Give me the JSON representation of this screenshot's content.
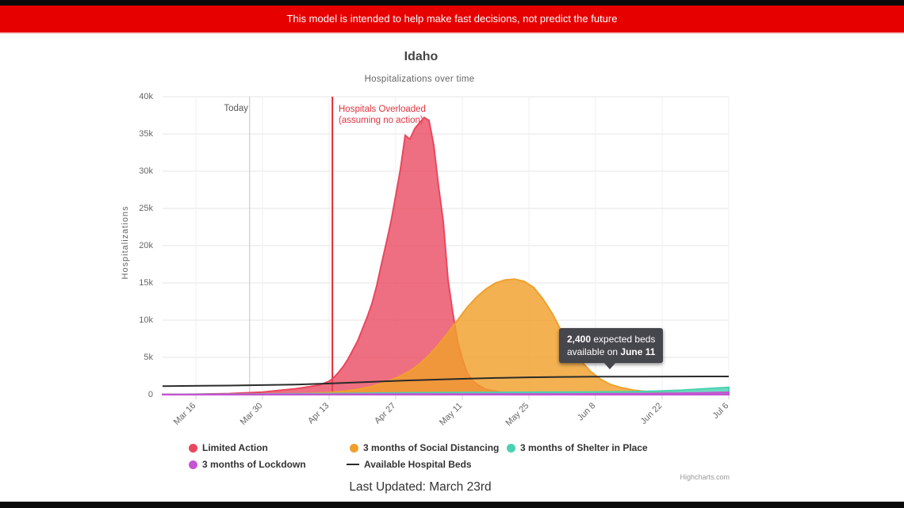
{
  "banner": {
    "text": "This model is intended to help make fast decisions, not predict the future"
  },
  "header": {
    "title": "Idaho",
    "subtitle": "Hospitalizations over time"
  },
  "axes": {
    "y_title": "Hospitalizations",
    "y_tick_labels": [
      "0",
      "5k",
      "10k",
      "15k",
      "20k",
      "25k",
      "30k",
      "35k",
      "40k"
    ],
    "x_tick_labels": [
      "Mar 16",
      "Mar 30",
      "Apr 13",
      "Apr 27",
      "May 11",
      "May 25",
      "Jun 8",
      "Jun 22",
      "Jul 6"
    ]
  },
  "annotations": {
    "today_label": "Today",
    "overload_line1": "Hospitals Overloaded",
    "overload_line2": "(assuming no action)"
  },
  "tooltip": {
    "value": "2,400",
    "after_value": " expected beds",
    "line2_prefix": "available on ",
    "date": "June 11"
  },
  "legend": {
    "items": [
      {
        "label": "Limited Action",
        "color": "#e9475e",
        "marker": "circle"
      },
      {
        "label": "3 months of Social Distancing",
        "color": "#f0a02c",
        "marker": "circle"
      },
      {
        "label": "3 months of Shelter in Place",
        "color": "#49d1b0",
        "marker": "circle"
      },
      {
        "label": "3 months of Lockdown",
        "color": "#c554d4",
        "marker": "circle"
      },
      {
        "label": "Available Hospital Beds",
        "color": "#2b2b2b",
        "marker": "line"
      }
    ]
  },
  "footer": {
    "last_updated": "Last Updated: March 23rd",
    "credits": "Highcharts.com"
  },
  "chart_data": {
    "type": "area",
    "title": "Idaho",
    "subtitle": "Hospitalizations over time",
    "ylabel": "Hospitalizations",
    "ylim": [
      0,
      40000
    ],
    "grid": true,
    "legend_position": "bottom",
    "x_axis": {
      "type": "date",
      "day0_date": "Mar 9",
      "day_max": 119,
      "tick_days": [
        7,
        21,
        35,
        49,
        63,
        77,
        91,
        105,
        119
      ],
      "tick_labels": [
        "Mar 16",
        "Mar 30",
        "Apr 13",
        "Apr 27",
        "May 11",
        "May 25",
        "Jun 8",
        "Jun 22",
        "Jul 6"
      ]
    },
    "y_ticks": [
      0,
      5000,
      10000,
      15000,
      20000,
      25000,
      30000,
      35000,
      40000
    ],
    "plot_lines": [
      {
        "name": "today",
        "day": 18.3,
        "color": "#c3c3c3",
        "width": 1,
        "label": "Today"
      },
      {
        "name": "hospitals-overloaded",
        "day": 35.7,
        "color": "#e0282f",
        "width": 2,
        "label": "Hospitals Overloaded (assuming no action)"
      }
    ],
    "tooltip_point": {
      "series": "Available Hospital Beds",
      "date": "June 11",
      "value": 2400
    },
    "series": [
      {
        "name": "Limited Action",
        "type": "area",
        "color": "#e9475e",
        "fill_opacity": 0.78,
        "points": [
          [
            0,
            30
          ],
          [
            7,
            60
          ],
          [
            14,
            150
          ],
          [
            21,
            350
          ],
          [
            28,
            800
          ],
          [
            31,
            1100
          ],
          [
            33,
            1300
          ],
          [
            35,
            1800
          ],
          [
            36,
            2300
          ],
          [
            37,
            3000
          ],
          [
            38,
            3800
          ],
          [
            39,
            4800
          ],
          [
            40,
            6000
          ],
          [
            41,
            7200
          ],
          [
            42,
            8800
          ],
          [
            43,
            10400
          ],
          [
            44,
            12200
          ],
          [
            45,
            14600
          ],
          [
            46,
            17500
          ],
          [
            47,
            20300
          ],
          [
            48,
            23200
          ],
          [
            49,
            26700
          ],
          [
            50,
            30300
          ],
          [
            51,
            34800
          ],
          [
            52,
            34300
          ],
          [
            53,
            35700
          ],
          [
            54,
            36500
          ],
          [
            55,
            37200
          ],
          [
            56,
            36800
          ],
          [
            57,
            33500
          ],
          [
            58,
            28000
          ],
          [
            59,
            23200
          ],
          [
            60,
            15400
          ],
          [
            61,
            11000
          ],
          [
            62,
            7200
          ],
          [
            63,
            4800
          ],
          [
            64,
            3000
          ],
          [
            65,
            2000
          ],
          [
            66,
            1400
          ],
          [
            68,
            700
          ],
          [
            71,
            350
          ],
          [
            75,
            150
          ],
          [
            80,
            80
          ],
          [
            90,
            40
          ],
          [
            105,
            25
          ],
          [
            119,
            20
          ]
        ]
      },
      {
        "name": "3 months of Social Distancing",
        "type": "area",
        "color": "#f0a02c",
        "fill_opacity": 0.82,
        "points": [
          [
            0,
            20
          ],
          [
            14,
            40
          ],
          [
            21,
            60
          ],
          [
            28,
            120
          ],
          [
            32,
            200
          ],
          [
            35,
            300
          ],
          [
            38,
            450
          ],
          [
            41,
            700
          ],
          [
            44,
            1100
          ],
          [
            47,
            1700
          ],
          [
            50,
            2500
          ],
          [
            52,
            3200
          ],
          [
            54,
            4100
          ],
          [
            56,
            5300
          ],
          [
            58,
            6700
          ],
          [
            60,
            8300
          ],
          [
            62,
            10000
          ],
          [
            64,
            11700
          ],
          [
            66,
            13100
          ],
          [
            68,
            14200
          ],
          [
            70,
            15000
          ],
          [
            72,
            15400
          ],
          [
            74,
            15500
          ],
          [
            76,
            15200
          ],
          [
            78,
            14400
          ],
          [
            80,
            12800
          ],
          [
            82,
            10800
          ],
          [
            84,
            8300
          ],
          [
            86,
            6300
          ],
          [
            88,
            4500
          ],
          [
            90,
            3100
          ],
          [
            92,
            2100
          ],
          [
            94,
            1400
          ],
          [
            96,
            1000
          ],
          [
            99,
            600
          ],
          [
            102,
            400
          ],
          [
            106,
            280
          ],
          [
            110,
            230
          ],
          [
            119,
            200
          ]
        ]
      },
      {
        "name": "3 months of Shelter in Place",
        "type": "area",
        "color": "#49d1b0",
        "fill_opacity": 0.8,
        "points": [
          [
            0,
            20
          ],
          [
            20,
            80
          ],
          [
            35,
            150
          ],
          [
            50,
            230
          ],
          [
            65,
            300
          ],
          [
            80,
            330
          ],
          [
            90,
            360
          ],
          [
            98,
            400
          ],
          [
            104,
            480
          ],
          [
            109,
            600
          ],
          [
            113,
            750
          ],
          [
            116,
            870
          ],
          [
            119,
            980
          ]
        ]
      },
      {
        "name": "3 months of Lockdown",
        "type": "area",
        "color": "#c554d4",
        "fill_opacity": 0.8,
        "points": [
          [
            0,
            20
          ],
          [
            30,
            50
          ],
          [
            60,
            80
          ],
          [
            85,
            100
          ],
          [
            100,
            140
          ],
          [
            108,
            190
          ],
          [
            114,
            250
          ],
          [
            119,
            320
          ]
        ]
      },
      {
        "name": "Available Hospital Beds",
        "type": "line",
        "color": "#2b2b2b",
        "points": [
          [
            0,
            1150
          ],
          [
            14,
            1220
          ],
          [
            28,
            1350
          ],
          [
            35,
            1500
          ],
          [
            42,
            1680
          ],
          [
            49,
            1850
          ],
          [
            56,
            2000
          ],
          [
            63,
            2130
          ],
          [
            70,
            2250
          ],
          [
            77,
            2330
          ],
          [
            84,
            2380
          ],
          [
            91,
            2410
          ],
          [
            100,
            2430
          ],
          [
            119,
            2450
          ]
        ]
      }
    ]
  }
}
